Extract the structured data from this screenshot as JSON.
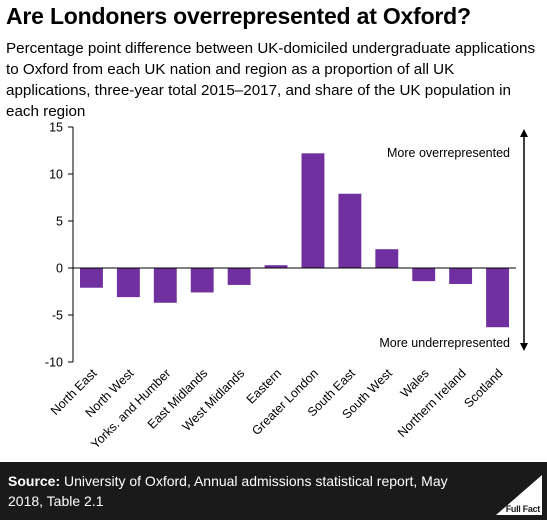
{
  "title": "Are Londoners overrepresented at Oxford?",
  "subtitle": "Percentage point difference between UK-domiciled undergraduate applications to Oxford from each UK nation and region as a proportion of all UK applications, three-year total 2015–2017, and share of the UK population in each region",
  "annotations": {
    "top": "More overrepresented",
    "bottom": "More underrepresented"
  },
  "footer": {
    "source_label": "Source:",
    "source_text": "University of Oxford, Annual admissions statistical report, May 2018, Table 2.1",
    "logo_text": "Full Fact"
  },
  "colors": {
    "bar": "#7030a0",
    "footer_bg": "#1a1a1a"
  },
  "chart_data": {
    "type": "bar",
    "categories": [
      "North East",
      "North West",
      "Yorks. and Humber",
      "East Midlands",
      "West Midlands",
      "Eastern",
      "Greater London",
      "South East",
      "South West",
      "Wales",
      "Northern Ireland",
      "Scotland"
    ],
    "values": [
      -2.1,
      -3.1,
      -3.7,
      -2.6,
      -1.8,
      0.3,
      12.2,
      7.9,
      2.0,
      -1.4,
      -1.7,
      -6.3
    ],
    "ylim": [
      -10,
      15
    ],
    "yticks": [
      "-10",
      "-5",
      "0",
      "5",
      "10",
      "15"
    ],
    "xlabel": "",
    "ylabel": ""
  }
}
